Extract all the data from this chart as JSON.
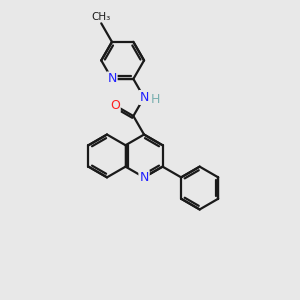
{
  "bg_color": "#e8e8e8",
  "bond_color": "#1a1a1a",
  "N_color": "#2020ff",
  "O_color": "#ff2020",
  "H_color": "#7ab0b0",
  "bond_width": 1.6,
  "figsize": [
    3.0,
    3.0
  ],
  "dpi": 100,
  "xlim": [
    0,
    10
  ],
  "ylim": [
    0,
    10
  ]
}
